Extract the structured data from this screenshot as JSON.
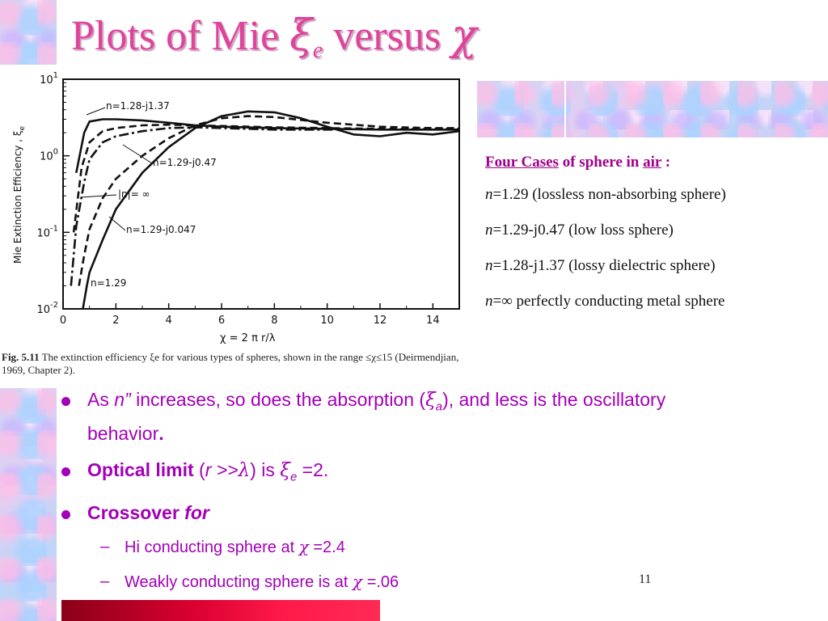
{
  "title": {
    "prefix": "Plots of Mie ",
    "xi": "ξ",
    "xi_sub": "e",
    "middle": " versus ",
    "chi": "χ"
  },
  "figure": {
    "ylabel": "Mie Extinction Efficiency ,  ξ",
    "ylabel_sub": "e",
    "xlabel": "χ  = 2 π r/λ",
    "y_ticks": [
      {
        "base": "10",
        "exp": "1"
      },
      {
        "base": "10",
        "exp": "0"
      },
      {
        "base": "10",
        "exp": "-1"
      },
      {
        "base": "10",
        "exp": "-2"
      }
    ],
    "x_ticks": [
      "0",
      "2",
      "4",
      "6",
      "8",
      "10",
      "12",
      "14"
    ],
    "curve_labels": [
      "n=1.28-j1.37",
      "n=1.29-j0.47",
      "|n|= ∞",
      "n=1.29-j0.047",
      "n=1.29"
    ]
  },
  "chart_data": {
    "type": "line",
    "xlabel": "χ  = 2 π r/λ",
    "ylabel": "Mie Extinction Efficiency , ξe",
    "xlim": [
      0,
      15
    ],
    "ylim": [
      0.01,
      10
    ],
    "yscale": "log",
    "series": [
      {
        "name": "n=1.28-j1.37",
        "style": "solid",
        "x": [
          0.5,
          0.8,
          1,
          1.5,
          2,
          3,
          4,
          5,
          6,
          8,
          10,
          12,
          14,
          15
        ],
        "y": [
          0.6,
          2.0,
          2.8,
          3.0,
          3.0,
          2.9,
          2.7,
          2.5,
          2.4,
          2.3,
          2.25,
          2.2,
          2.2,
          2.2
        ]
      },
      {
        "name": "n=1.29-j0.47",
        "style": "dashed",
        "x": [
          0.4,
          0.7,
          1,
          1.5,
          2,
          3,
          4,
          5,
          6,
          8,
          10,
          12,
          14,
          15
        ],
        "y": [
          0.1,
          0.7,
          1.5,
          2.1,
          2.3,
          2.5,
          2.55,
          2.5,
          2.45,
          2.35,
          2.3,
          2.25,
          2.25,
          2.25
        ]
      },
      {
        "name": "|n|= ∞",
        "style": "dashdot",
        "x": [
          0.3,
          0.5,
          0.8,
          1,
          1.5,
          2,
          3,
          4,
          5,
          6,
          8,
          10.2
        ],
        "y": [
          0.02,
          0.12,
          0.45,
          0.9,
          1.5,
          1.8,
          2.1,
          2.3,
          2.35,
          2.3,
          2.2,
          2.2
        ]
      },
      {
        "name": "n=1.29-j0.047",
        "style": "dashed",
        "x": [
          0.6,
          0.8,
          1,
          1.5,
          2,
          3,
          4,
          5,
          6,
          7,
          8,
          10,
          12,
          14,
          15
        ],
        "y": [
          0.02,
          0.05,
          0.11,
          0.28,
          0.5,
          1.0,
          1.7,
          2.5,
          3.1,
          3.3,
          3.2,
          2.7,
          2.4,
          2.3,
          2.3
        ]
      },
      {
        "name": "n=1.29",
        "style": "solid",
        "x": [
          0.75,
          0.9,
          1,
          1.5,
          2,
          3,
          4,
          5,
          6,
          7,
          8,
          9,
          10,
          11,
          12,
          13,
          14,
          15
        ],
        "y": [
          0.01,
          0.02,
          0.03,
          0.08,
          0.2,
          0.6,
          1.3,
          2.3,
          3.3,
          3.8,
          3.7,
          3.1,
          2.4,
          1.9,
          1.8,
          2.0,
          1.9,
          2.1
        ]
      }
    ]
  },
  "caption": {
    "fig_label": "Fig. 5.11",
    "text": " The extinction efficiency ξe for various types of spheres, shown in the range ≤χ≤15 (Deirmendjian, 1969, Chapter 2)."
  },
  "cases": {
    "head_a": "Four Cases",
    "head_b": " of sphere in ",
    "head_c": "air",
    "head_d": " :",
    "n_label": "n",
    "rows": [
      "=1.29 (lossless non-absorbing sphere)",
      "=1.29-j0.47 (low loss sphere)",
      "=1.28-j1.37 (lossy dielectric sphere)",
      "=∞  perfectly conducting metal sphere"
    ]
  },
  "bullets": {
    "b1_a": "As ",
    "b1_n": "n”",
    "b1_b": " increases, so does the absorption (",
    "b1_xi": "ξ",
    "b1_sub": "a",
    "b1_c": "), and less is the oscillatory behavior",
    "b1_d": ".",
    "b2_bold": "Optical limit",
    "b2_a": " (",
    "b2_r": "r >>",
    "b2_lambda": "λ",
    "b2_b": ") is ",
    "b2_xi": "ξ",
    "b2_sub": "e",
    "b2_c": " =2.",
    "b3_bold": "Crossover ",
    "b3_italic": "for",
    "s1_a": "Hi conducting sphere at ",
    "s1_chi": "χ",
    "s1_b": " =2.4",
    "s2_a": "Weakly conducting sphere is at ",
    "s2_chi": "χ",
    "s2_b": " =.06"
  },
  "page_number": "11"
}
